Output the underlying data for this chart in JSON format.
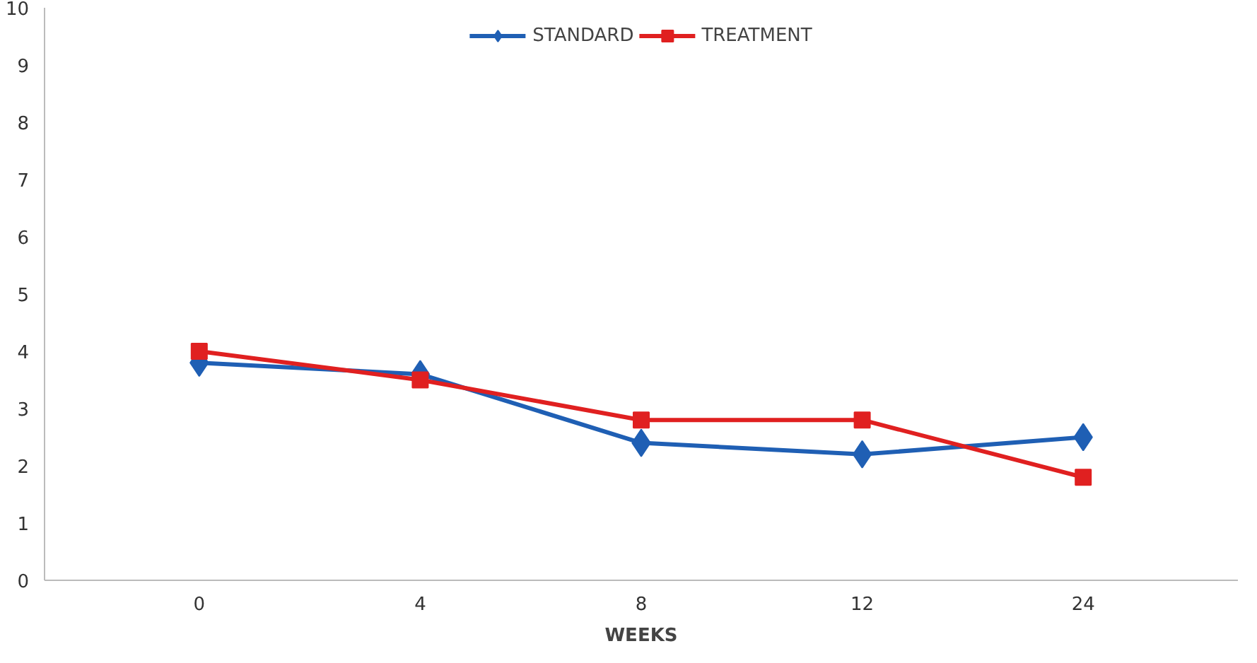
{
  "chart_data": {
    "type": "line",
    "xlabel": "WEEKS",
    "categories": [
      "0",
      "4",
      "8",
      "12",
      "24"
    ],
    "series": [
      {
        "name": "STANDARD",
        "color": "#1f5fb4",
        "marker": "diamond",
        "values": [
          3.8,
          3.6,
          2.4,
          2.2,
          2.5
        ]
      },
      {
        "name": "TREATMENT",
        "color": "#e02020",
        "marker": "square",
        "values": [
          4.0,
          3.5,
          2.8,
          2.8,
          1.8
        ]
      }
    ],
    "ylim": [
      0,
      10
    ],
    "yticks": [
      0,
      1,
      2,
      3,
      4,
      5,
      6,
      7,
      8,
      9,
      10
    ],
    "grid": false,
    "legend": "top"
  }
}
